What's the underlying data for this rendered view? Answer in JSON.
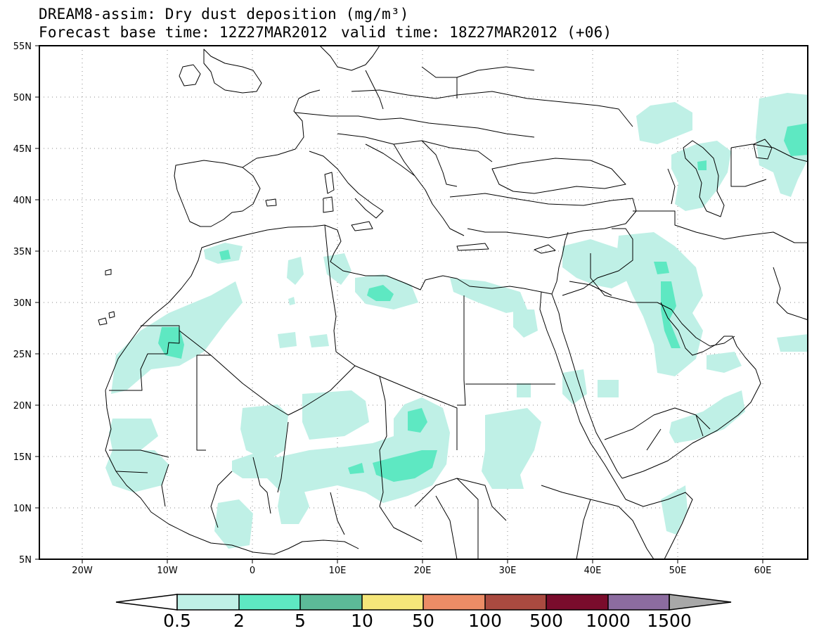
{
  "title": {
    "line1": "DREAM8-assim: Dry dust deposition (mg/m³)",
    "base": "Forecast base time: 12Z27MAR2012",
    "valid": "valid time: 18Z27MAR2012 (+06)"
  },
  "axes": {
    "lat_labels": [
      "55N",
      "50N",
      "45N",
      "40N",
      "35N",
      "30N",
      "25N",
      "20N",
      "15N",
      "10N",
      "5N"
    ],
    "lon_labels": [
      "20W",
      "10W",
      "0",
      "10E",
      "20E",
      "30E",
      "40E",
      "50E",
      "60E"
    ]
  },
  "colorbar": {
    "labels": [
      "0.5",
      "2",
      "5",
      "10",
      "50",
      "100",
      "500",
      "1000",
      "1500"
    ],
    "colors": [
      "#bff0e6",
      "#5ee8c2",
      "#5cba98",
      "#f5e67a",
      "#ec8c66",
      "#aa4a40",
      "#7a0c2c",
      "#8c6ca0",
      "#a8a8a8"
    ]
  },
  "shading_colors": {
    "light": "#bff0e6",
    "medium": "#5ee8c2",
    "dark": "#5cba98"
  }
}
